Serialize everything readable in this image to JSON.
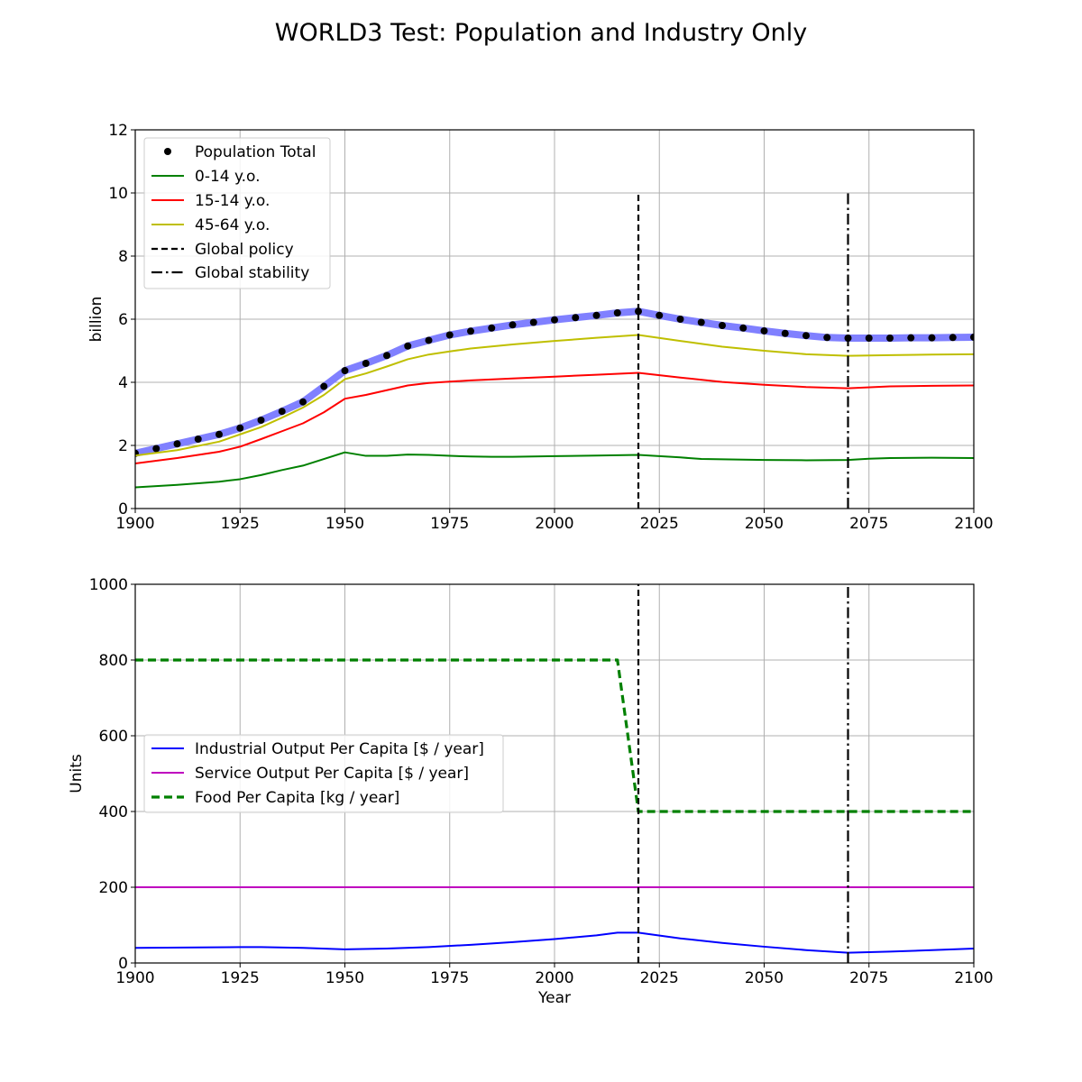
{
  "figure": {
    "title": "WORLD3 Test: Population and Industry Only"
  },
  "chart_data": [
    {
      "type": "line",
      "ylabel": "billion",
      "xlabel": "",
      "xlim": [
        1900,
        2100
      ],
      "ylim": [
        0,
        12
      ],
      "xticks": [
        1900,
        1925,
        1950,
        1975,
        2000,
        2025,
        2050,
        2075,
        2100
      ],
      "yticks": [
        0,
        2,
        4,
        6,
        8,
        10,
        12
      ],
      "grid": true,
      "legend_position": "upper-left",
      "series": [
        {
          "name": "Population Total",
          "style": "dots",
          "color": "#000000",
          "highlight_color": "#8080ff",
          "x": [
            1900,
            1905,
            1910,
            1915,
            1920,
            1925,
            1930,
            1935,
            1940,
            1945,
            1950,
            1955,
            1960,
            1965,
            1970,
            1975,
            1980,
            1985,
            1990,
            1995,
            2000,
            2005,
            2010,
            2015,
            2020,
            2025,
            2030,
            2035,
            2040,
            2045,
            2050,
            2055,
            2060,
            2065,
            2070,
            2075,
            2080,
            2085,
            2090,
            2095,
            2100
          ],
          "y": [
            1.75,
            1.9,
            2.05,
            2.2,
            2.35,
            2.55,
            2.8,
            3.08,
            3.38,
            3.87,
            4.37,
            4.6,
            4.85,
            5.15,
            5.33,
            5.5,
            5.62,
            5.72,
            5.82,
            5.9,
            5.98,
            6.05,
            6.12,
            6.2,
            6.25,
            6.12,
            6.0,
            5.9,
            5.8,
            5.72,
            5.63,
            5.55,
            5.48,
            5.42,
            5.4,
            5.4,
            5.4,
            5.41,
            5.41,
            5.42,
            5.43
          ]
        },
        {
          "name": "0-14 y.o.",
          "style": "solid",
          "color": "#008000",
          "x": [
            1900,
            1910,
            1920,
            1925,
            1930,
            1935,
            1940,
            1945,
            1950,
            1955,
            1960,
            1965,
            1970,
            1975,
            1980,
            1985,
            1990,
            2000,
            2010,
            2020,
            2030,
            2035,
            2040,
            2050,
            2060,
            2070,
            2075,
            2080,
            2090,
            2100
          ],
          "y": [
            0.67,
            0.75,
            0.85,
            0.93,
            1.06,
            1.22,
            1.36,
            1.57,
            1.78,
            1.67,
            1.67,
            1.71,
            1.7,
            1.67,
            1.65,
            1.64,
            1.64,
            1.66,
            1.68,
            1.7,
            1.62,
            1.57,
            1.56,
            1.54,
            1.53,
            1.54,
            1.58,
            1.6,
            1.61,
            1.6
          ]
        },
        {
          "name": "15-14 y.o.",
          "style": "solid",
          "color": "#ff0000",
          "x": [
            1900,
            1910,
            1920,
            1925,
            1930,
            1935,
            1940,
            1945,
            1950,
            1955,
            1960,
            1965,
            1970,
            1975,
            1980,
            1990,
            2000,
            2010,
            2020,
            2030,
            2040,
            2050,
            2060,
            2070,
            2080,
            2090,
            2100
          ],
          "y": [
            1.43,
            1.6,
            1.8,
            1.96,
            2.2,
            2.45,
            2.7,
            3.05,
            3.48,
            3.6,
            3.75,
            3.9,
            3.98,
            4.02,
            4.06,
            4.12,
            4.18,
            4.24,
            4.3,
            4.15,
            4.01,
            3.92,
            3.85,
            3.81,
            3.87,
            3.89,
            3.9
          ]
        },
        {
          "name": "45-64 y.o.",
          "style": "solid",
          "color": "#bfbf00",
          "x": [
            1900,
            1910,
            1920,
            1925,
            1930,
            1935,
            1940,
            1945,
            1950,
            1955,
            1960,
            1965,
            1970,
            1975,
            1980,
            1990,
            2000,
            2010,
            2020,
            2030,
            2040,
            2050,
            2060,
            2070,
            2080,
            2090,
            2100
          ],
          "y": [
            1.68,
            1.85,
            2.12,
            2.35,
            2.58,
            2.88,
            3.2,
            3.6,
            4.1,
            4.28,
            4.5,
            4.73,
            4.88,
            4.98,
            5.07,
            5.2,
            5.31,
            5.41,
            5.5,
            5.31,
            5.13,
            5.0,
            4.89,
            4.84,
            4.86,
            4.88,
            4.89
          ]
        },
        {
          "name": "Global policy",
          "style": "vline-dashed",
          "color": "#000000",
          "x": 2020,
          "y_range": [
            0,
            10
          ]
        },
        {
          "name": "Global stability",
          "style": "vline-dashdot",
          "color": "#000000",
          "x": 2070,
          "y_range": [
            0,
            10
          ]
        }
      ]
    },
    {
      "type": "line",
      "ylabel": "Units",
      "xlabel": "Year",
      "xlim": [
        1900,
        2100
      ],
      "ylim": [
        0,
        1000
      ],
      "xticks": [
        1900,
        1925,
        1950,
        1975,
        2000,
        2025,
        2050,
        2075,
        2100
      ],
      "yticks": [
        0,
        200,
        400,
        600,
        800,
        1000
      ],
      "grid": true,
      "legend_position": "center-left",
      "series": [
        {
          "name": "Industrial Output Per Capita [$ / year]",
          "style": "solid",
          "color": "#0000ff",
          "x": [
            1900,
            1925,
            1930,
            1940,
            1950,
            1960,
            1970,
            1980,
            1990,
            2000,
            2010,
            2015,
            2020,
            2030,
            2040,
            2050,
            2060,
            2070,
            2080,
            2090,
            2100
          ],
          "y": [
            40,
            42,
            42,
            40,
            36,
            38,
            42,
            48,
            55,
            63,
            73,
            80,
            80,
            65,
            53,
            43,
            34,
            27,
            30,
            34,
            38
          ]
        },
        {
          "name": "Service Output Per Capita [$ / year]",
          "style": "solid",
          "color": "#bf00bf",
          "x": [
            1900,
            2100
          ],
          "y": [
            200,
            200
          ]
        },
        {
          "name": "Food Per Capita [kg / year]",
          "style": "dashed-thick",
          "color": "#008000",
          "x": [
            1900,
            2015,
            2020,
            2100
          ],
          "y": [
            800,
            800,
            400,
            400
          ]
        },
        {
          "name": "",
          "style": "vline-dashed",
          "color": "#000000",
          "x": 2020,
          "y_range": [
            0,
            1000
          ]
        },
        {
          "name": "",
          "style": "vline-dashdot",
          "color": "#000000",
          "x": 2070,
          "y_range": [
            0,
            1000
          ]
        }
      ]
    }
  ]
}
